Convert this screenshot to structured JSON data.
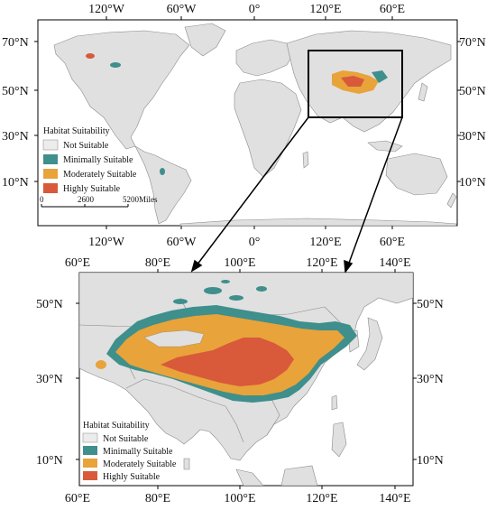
{
  "colors": {
    "ocean": "#ffffff",
    "land": "#e0e0e0",
    "border": "#8a8a8a",
    "not_suitable": "#ececec",
    "minimally_suitable": "#3f8f8c",
    "moderately_suitable": "#e8a33a",
    "highly_suitable": "#d9593b",
    "frame": "#000000"
  },
  "world_map": {
    "top_ticks": [
      "120°W",
      "60°W",
      "0°",
      "120°E",
      "60°E"
    ],
    "bottom_ticks": [
      "120°W",
      "60°W",
      "0°",
      "120°E",
      "60°E"
    ],
    "left_ticks": [
      "70°N",
      "50°N",
      "30°N",
      "10°N"
    ],
    "right_ticks": [
      "70°N",
      "50°N",
      "30°N",
      "10°N"
    ],
    "legend": {
      "title": "Habitat Suitability",
      "items": [
        "Not Suitable",
        "Minimally Suitable",
        "Moderately Suitable",
        "Highly Suitable"
      ]
    },
    "scale_bar": {
      "labels": [
        "0",
        "2600",
        "5200Miles"
      ]
    }
  },
  "detail_map": {
    "top_ticks": [
      "60°E",
      "80°E",
      "100°E",
      "120°E",
      "140°E"
    ],
    "bottom_ticks": [
      "60°E",
      "80°E",
      "100°E",
      "120°E",
      "140°E"
    ],
    "left_ticks": [
      "50°N",
      "30°N",
      "10°N"
    ],
    "right_ticks": [
      "50°N",
      "30°N",
      "10°N"
    ],
    "legend": {
      "title": "Habitat Suitability",
      "items": [
        "Not Suitable",
        "Minimally Suitable",
        "Moderately Suitable",
        "Highly Suitable"
      ]
    }
  }
}
